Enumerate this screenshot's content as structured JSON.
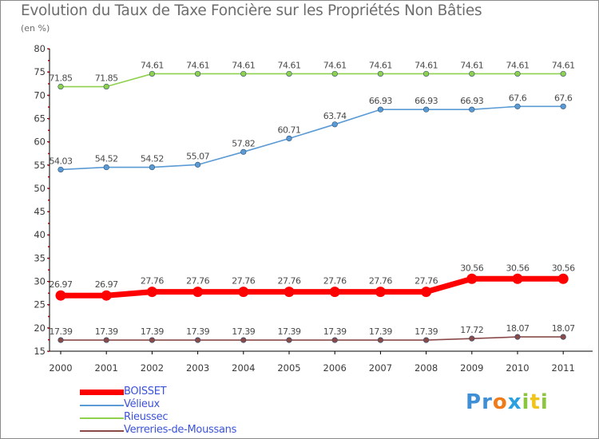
{
  "title": "Evolution du Taux de Taxe Foncière sur les Propriétés Non Bâties",
  "unit_label": "(en %)",
  "logo": {
    "text": "Proxiti",
    "letters": [
      "P",
      "r",
      "o",
      "x",
      "i",
      "t",
      "i"
    ],
    "colors": [
      "#3f8fd6",
      "#3f8fd6",
      "#f07b1a",
      "#2aa0e0",
      "#8cc63e",
      "#f0c419",
      "#8cc63e"
    ]
  },
  "chart_data": {
    "type": "line",
    "title": "Evolution du Taux de Taxe Foncière sur les Propriétés Non Bâties",
    "ylabel": "(en %)",
    "xlabel": "",
    "x": [
      "2000",
      "2001",
      "2002",
      "2003",
      "2004",
      "2005",
      "2006",
      "2007",
      "2008",
      "2009",
      "2010",
      "2011"
    ],
    "ylim": [
      15,
      80
    ],
    "yticks": [
      15,
      20,
      25,
      30,
      35,
      40,
      45,
      50,
      55,
      60,
      65,
      70,
      75,
      80
    ],
    "grid": false,
    "legend_position": "bottom-left",
    "series": [
      {
        "name": "BOISSET",
        "color": "#ff0000",
        "values": [
          26.97,
          26.97,
          27.76,
          27.76,
          27.76,
          27.76,
          27.76,
          27.76,
          27.76,
          30.56,
          30.56,
          30.56
        ],
        "labels": [
          "26.97",
          "26.97",
          "27.76",
          "27.76",
          "27.76",
          "27.76",
          "27.76",
          "27.76",
          "27.76",
          "30.56",
          "30.56",
          "30.56"
        ]
      },
      {
        "name": "Vélieux",
        "color": "#5b9bd5",
        "values": [
          54.03,
          54.52,
          54.52,
          55.07,
          57.82,
          60.71,
          63.74,
          66.93,
          66.93,
          66.93,
          67.6,
          67.6
        ],
        "labels": [
          "54.03",
          "54.52",
          "54.52",
          "55.07",
          "57.82",
          "60.71",
          "63.74",
          "66.93",
          "66.93",
          "66.93",
          "67.6",
          "67.6"
        ]
      },
      {
        "name": "Rieussec",
        "color": "#8fd14f",
        "values": [
          71.85,
          71.85,
          74.61,
          74.61,
          74.61,
          74.61,
          74.61,
          74.61,
          74.61,
          74.61,
          74.61,
          74.61
        ],
        "labels": [
          "71.85",
          "71.85",
          "74.61",
          "74.61",
          "74.61",
          "74.61",
          "74.61",
          "74.61",
          "74.61",
          "74.61",
          "74.61",
          "74.61"
        ]
      },
      {
        "name": "Verreries-de-Moussans",
        "color": "#8b4a4a",
        "values": [
          17.39,
          17.39,
          17.39,
          17.39,
          17.39,
          17.39,
          17.39,
          17.39,
          17.39,
          17.72,
          18.07,
          18.07
        ],
        "labels": [
          "17.39",
          "17.39",
          "17.39",
          "17.39",
          "17.39",
          "17.39",
          "17.39",
          "17.39",
          "17.39",
          "17.72",
          "18.07",
          "18.07"
        ]
      }
    ]
  }
}
